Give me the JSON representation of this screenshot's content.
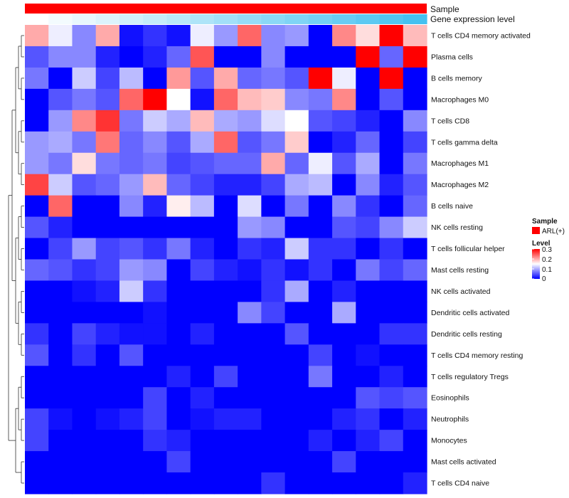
{
  "chart_data": {
    "type": "heatmap",
    "annotation_rows": [
      {
        "name": "Sample",
        "color": "#ff0000"
      },
      {
        "name": "Gene expression level"
      }
    ],
    "gene_expression_level": [
      0.0,
      0.04,
      0.08,
      0.12,
      0.16,
      0.2,
      0.24,
      0.28,
      0.32,
      0.36,
      0.4,
      0.44,
      0.48,
      0.52,
      0.56,
      0.6,
      0.64
    ],
    "rows": [
      "T cells CD4 memory activated",
      "Plasma cells",
      "B cells memory",
      "Macrophages M0",
      "T cells CD8",
      "T cells gamma delta",
      "Macrophages M1",
      "Macrophages M2",
      "B cells naive",
      "NK cells resting",
      "T cells follicular helper",
      "Mast cells resting",
      "NK cells activated",
      "Dendritic cells activated",
      "Dendritic cells resting",
      "T cells CD4 memory resting",
      "T cells regulatory  Tregs",
      "Eosinophils",
      "Neutrophils",
      "Monocytes",
      "Mast cells activated",
      "T cells CD4 naive"
    ],
    "values": [
      [
        0.2,
        0.14,
        0.08,
        0.2,
        0.01,
        0.03,
        0.01,
        0.14,
        0.09,
        0.24,
        0.08,
        0.09,
        0.0,
        0.22,
        0.17,
        0.3,
        0.19
      ],
      [
        0.05,
        0.08,
        0.08,
        0.02,
        0.0,
        0.02,
        0.06,
        0.25,
        0.0,
        0.0,
        0.08,
        0.0,
        0.0,
        0.0,
        0.3,
        0.06,
        0.31
      ],
      [
        0.07,
        0.0,
        0.12,
        0.04,
        0.11,
        0.0,
        0.21,
        0.05,
        0.2,
        0.06,
        0.07,
        0.05,
        0.3,
        0.14,
        0.0,
        0.31,
        0.0
      ],
      [
        0.0,
        0.05,
        0.07,
        0.05,
        0.24,
        0.31,
        0.15,
        0.01,
        0.24,
        0.19,
        0.18,
        0.08,
        0.07,
        0.22,
        0.0,
        0.05,
        0.0
      ],
      [
        0.0,
        0.09,
        0.22,
        0.27,
        0.07,
        0.12,
        0.1,
        0.19,
        0.1,
        0.09,
        0.13,
        0.15,
        0.05,
        0.04,
        0.02,
        0.0,
        0.08
      ],
      [
        0.09,
        0.1,
        0.07,
        0.23,
        0.06,
        0.08,
        0.05,
        0.1,
        0.24,
        0.05,
        0.07,
        0.18,
        0.0,
        0.02,
        0.06,
        0.0,
        0.04
      ],
      [
        0.09,
        0.07,
        0.17,
        0.07,
        0.06,
        0.07,
        0.04,
        0.05,
        0.06,
        0.06,
        0.2,
        0.06,
        0.14,
        0.05,
        0.1,
        0.0,
        0.07
      ],
      [
        0.26,
        0.12,
        0.05,
        0.06,
        0.09,
        0.19,
        0.06,
        0.04,
        0.02,
        0.02,
        0.04,
        0.1,
        0.11,
        0.0,
        0.08,
        0.02,
        0.05
      ],
      [
        0.0,
        0.24,
        0.0,
        0.0,
        0.08,
        0.02,
        0.16,
        0.11,
        0.0,
        0.13,
        0.0,
        0.07,
        0.0,
        0.08,
        0.03,
        0.0,
        0.06
      ],
      [
        0.05,
        0.02,
        0.0,
        0.0,
        0.0,
        0.0,
        0.0,
        0.0,
        0.0,
        0.09,
        0.08,
        0.0,
        0.0,
        0.05,
        0.04,
        0.08,
        0.12
      ],
      [
        0.0,
        0.04,
        0.09,
        0.04,
        0.05,
        0.03,
        0.07,
        0.02,
        0.0,
        0.03,
        0.02,
        0.12,
        0.03,
        0.03,
        0.0,
        0.03,
        0.0
      ],
      [
        0.06,
        0.05,
        0.03,
        0.04,
        0.09,
        0.08,
        0.0,
        0.04,
        0.02,
        0.01,
        0.03,
        0.01,
        0.03,
        0.0,
        0.07,
        0.04,
        0.06
      ],
      [
        0.0,
        0.0,
        0.01,
        0.02,
        0.12,
        0.03,
        0.0,
        0.0,
        0.0,
        0.0,
        0.03,
        0.1,
        0.0,
        0.02,
        0.0,
        0.0,
        0.0
      ],
      [
        0.0,
        0.0,
        0.0,
        0.0,
        0.0,
        0.01,
        0.0,
        0.0,
        0.0,
        0.08,
        0.04,
        0.0,
        0.0,
        0.1,
        0.0,
        0.0,
        0.0
      ],
      [
        0.03,
        0.0,
        0.04,
        0.02,
        0.01,
        0.01,
        0.0,
        0.02,
        0.0,
        0.0,
        0.0,
        0.05,
        0.0,
        0.0,
        0.0,
        0.03,
        0.03
      ],
      [
        0.05,
        0.0,
        0.03,
        0.0,
        0.05,
        0.0,
        0.0,
        0.0,
        0.0,
        0.0,
        0.0,
        0.0,
        0.04,
        0.0,
        0.01,
        0.0,
        0.0
      ],
      [
        0.0,
        0.0,
        0.0,
        0.0,
        0.0,
        0.0,
        0.02,
        0.0,
        0.04,
        0.0,
        0.0,
        0.0,
        0.07,
        0.0,
        0.0,
        0.02,
        0.0
      ],
      [
        0.0,
        0.0,
        0.0,
        0.0,
        0.0,
        0.04,
        0.0,
        0.02,
        0.0,
        0.0,
        0.0,
        0.0,
        0.0,
        0.0,
        0.05,
        0.04,
        0.05
      ],
      [
        0.04,
        0.01,
        0.0,
        0.01,
        0.02,
        0.04,
        0.0,
        0.01,
        0.02,
        0.02,
        0.0,
        0.0,
        0.0,
        0.02,
        0.03,
        0.0,
        0.02
      ],
      [
        0.04,
        0.0,
        0.0,
        0.0,
        0.0,
        0.03,
        0.02,
        0.0,
        0.0,
        0.0,
        0.0,
        0.0,
        0.02,
        0.0,
        0.02,
        0.04,
        0.0
      ],
      [
        0.0,
        0.0,
        0.0,
        0.0,
        0.0,
        0.0,
        0.04,
        0.0,
        0.0,
        0.0,
        0.0,
        0.0,
        0.0,
        0.04,
        0.0,
        0.0,
        0.0
      ],
      [
        0.0,
        0.0,
        0.0,
        0.0,
        0.0,
        0.0,
        0.0,
        0.0,
        0.0,
        0.0,
        0.03,
        0.0,
        0.0,
        0.0,
        0.0,
        0.0,
        0.02
      ]
    ],
    "color_scale": {
      "low": "#0000ff",
      "mid": "#ffffff",
      "high": "#ff0000",
      "range": [
        0,
        0.3
      ]
    },
    "legend": {
      "sample_title": "Sample",
      "sample_entries": [
        {
          "label": "ARL(+)",
          "color": "#ff0000"
        }
      ],
      "level_title": "Level",
      "level_ticks": [
        "0.3",
        "0.2",
        "0.1",
        "0"
      ]
    },
    "row_dendrogram": true,
    "legend_placement": "right"
  }
}
